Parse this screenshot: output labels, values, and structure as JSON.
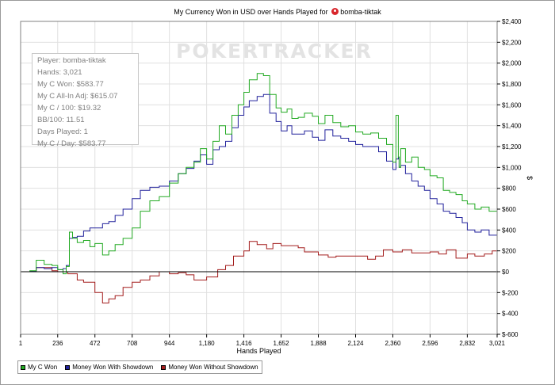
{
  "chart_data": {
    "type": "line",
    "title_prefix": "My Currency Won in USD over Hands Played for",
    "player_name": "bomba-tiktak",
    "xlabel": "Hands Played",
    "ylabel": "$",
    "xlim": [
      1,
      3021
    ],
    "ylim": [
      -600,
      2400
    ],
    "x_ticks": [
      1,
      236,
      472,
      708,
      944,
      1180,
      1416,
      1652,
      1888,
      2124,
      2360,
      2596,
      2832,
      3021
    ],
    "x_tick_labels": [
      "1",
      "236",
      "472",
      "708",
      "944",
      "1,180",
      "1,416",
      "1,652",
      "1,888",
      "2,124",
      "2,360",
      "2,596",
      "2,832",
      "3,021"
    ],
    "y_ticks": [
      -600,
      -400,
      -200,
      0,
      200,
      400,
      600,
      800,
      1000,
      1200,
      1400,
      1600,
      1800,
      2000,
      2200,
      2400
    ],
    "y_tick_labels": [
      "$-600",
      "$-400",
      "$-200",
      "$0",
      "$200",
      "$400",
      "$600",
      "$800",
      "$1,000",
      "$1,200",
      "$1,400",
      "$1,600",
      "$1,800",
      "$2,000",
      "$2,200",
      "$2,400"
    ],
    "grid": true,
    "legend_position": "bottom-left",
    "series": [
      {
        "name": "My C Won",
        "color": "#22aa22",
        "x": [
          1,
          60,
          100,
          150,
          200,
          236,
          270,
          290,
          310,
          330,
          360,
          400,
          440,
          472,
          520,
          560,
          600,
          650,
          708,
          760,
          820,
          880,
          944,
          1000,
          1050,
          1100,
          1140,
          1180,
          1220,
          1260,
          1300,
          1340,
          1380,
          1416,
          1450,
          1500,
          1540,
          1580,
          1620,
          1652,
          1690,
          1720,
          1760,
          1800,
          1850,
          1888,
          1930,
          1980,
          2030,
          2080,
          2124,
          2170,
          2220,
          2270,
          2320,
          2360,
          2380,
          2395,
          2400,
          2410,
          2440,
          2480,
          2520,
          2560,
          2596,
          2640,
          2680,
          2720,
          2760,
          2800,
          2832,
          2880,
          2920,
          2970,
          3021
        ],
        "values": [
          0,
          10,
          110,
          70,
          60,
          20,
          -20,
          50,
          380,
          320,
          280,
          300,
          240,
          270,
          160,
          200,
          260,
          320,
          420,
          580,
          680,
          720,
          850,
          940,
          1000,
          1050,
          1180,
          1080,
          1250,
          1400,
          1320,
          1500,
          1600,
          1720,
          1840,
          1900,
          1880,
          1700,
          1570,
          1530,
          1560,
          1470,
          1480,
          1520,
          1490,
          1420,
          1500,
          1430,
          1390,
          1400,
          1340,
          1320,
          1330,
          1280,
          1220,
          1050,
          1500,
          1100,
          1000,
          1180,
          1050,
          1100,
          1000,
          980,
          920,
          900,
          780,
          760,
          740,
          680,
          650,
          600,
          620,
          580,
          580
        ]
      },
      {
        "name": "Money Won With Showdown",
        "color": "#22229c",
        "x": [
          1,
          60,
          100,
          150,
          200,
          236,
          270,
          290,
          310,
          330,
          360,
          400,
          440,
          472,
          520,
          560,
          600,
          650,
          708,
          760,
          820,
          880,
          944,
          1000,
          1050,
          1100,
          1140,
          1180,
          1220,
          1260,
          1300,
          1340,
          1380,
          1416,
          1450,
          1500,
          1540,
          1580,
          1620,
          1652,
          1690,
          1720,
          1760,
          1800,
          1850,
          1888,
          1930,
          1980,
          2030,
          2080,
          2124,
          2170,
          2220,
          2270,
          2320,
          2360,
          2380,
          2395,
          2400,
          2410,
          2440,
          2480,
          2520,
          2560,
          2596,
          2640,
          2680,
          2720,
          2760,
          2800,
          2832,
          2880,
          2920,
          2970,
          3021
        ],
        "values": [
          0,
          5,
          40,
          30,
          40,
          20,
          30,
          60,
          320,
          330,
          340,
          390,
          420,
          420,
          460,
          480,
          540,
          600,
          700,
          780,
          810,
          820,
          870,
          940,
          990,
          1060,
          1120,
          1030,
          1170,
          1200,
          1250,
          1380,
          1500,
          1580,
          1640,
          1680,
          1700,
          1520,
          1440,
          1350,
          1400,
          1320,
          1320,
          1350,
          1290,
          1260,
          1360,
          1300,
          1280,
          1250,
          1220,
          1200,
          1200,
          1150,
          1060,
          980,
          1080,
          1100,
          1000,
          1020,
          940,
          870,
          820,
          780,
          700,
          650,
          580,
          560,
          520,
          470,
          400,
          380,
          400,
          350,
          350
        ]
      },
      {
        "name": "Money Won Without Showdown",
        "color": "#a31c1c",
        "x": [
          1,
          100,
          200,
          236,
          300,
          360,
          400,
          472,
          520,
          560,
          600,
          650,
          708,
          760,
          820,
          880,
          944,
          1000,
          1050,
          1100,
          1180,
          1250,
          1300,
          1350,
          1416,
          1450,
          1500,
          1560,
          1600,
          1652,
          1700,
          1760,
          1800,
          1888,
          1950,
          2000,
          2060,
          2124,
          2200,
          2250,
          2300,
          2360,
          2420,
          2480,
          2540,
          2596,
          2650,
          2700,
          2760,
          2800,
          2832,
          2880,
          2940,
          2990,
          3021
        ],
        "values": [
          0,
          40,
          10,
          0,
          -20,
          -80,
          -100,
          -200,
          -300,
          -260,
          -230,
          -150,
          -100,
          -80,
          -40,
          0,
          -20,
          -10,
          -30,
          -80,
          -50,
          20,
          60,
          150,
          200,
          290,
          260,
          220,
          270,
          250,
          250,
          230,
          190,
          160,
          140,
          150,
          150,
          150,
          120,
          150,
          210,
          190,
          210,
          180,
          180,
          190,
          170,
          210,
          130,
          130,
          170,
          150,
          170,
          200,
          200
        ]
      }
    ]
  },
  "stats_box": {
    "lines": [
      "Player: bomba-tiktak",
      "Hands: 3,021",
      "My C Won: $583.77",
      "My C All-In Adj: $615.07",
      "My C / 100: $19.32",
      "BB/100: 11.51",
      "Days Played: 1",
      "My C / Day: $583.77"
    ]
  },
  "watermark": "POKERTRACKER",
  "legend": {
    "items": [
      "My C Won",
      "Money Won With Showdown",
      "Money Won Without Showdown"
    ]
  },
  "colors": {
    "grid": "#e0e0e0",
    "zero_line": "#000000"
  }
}
